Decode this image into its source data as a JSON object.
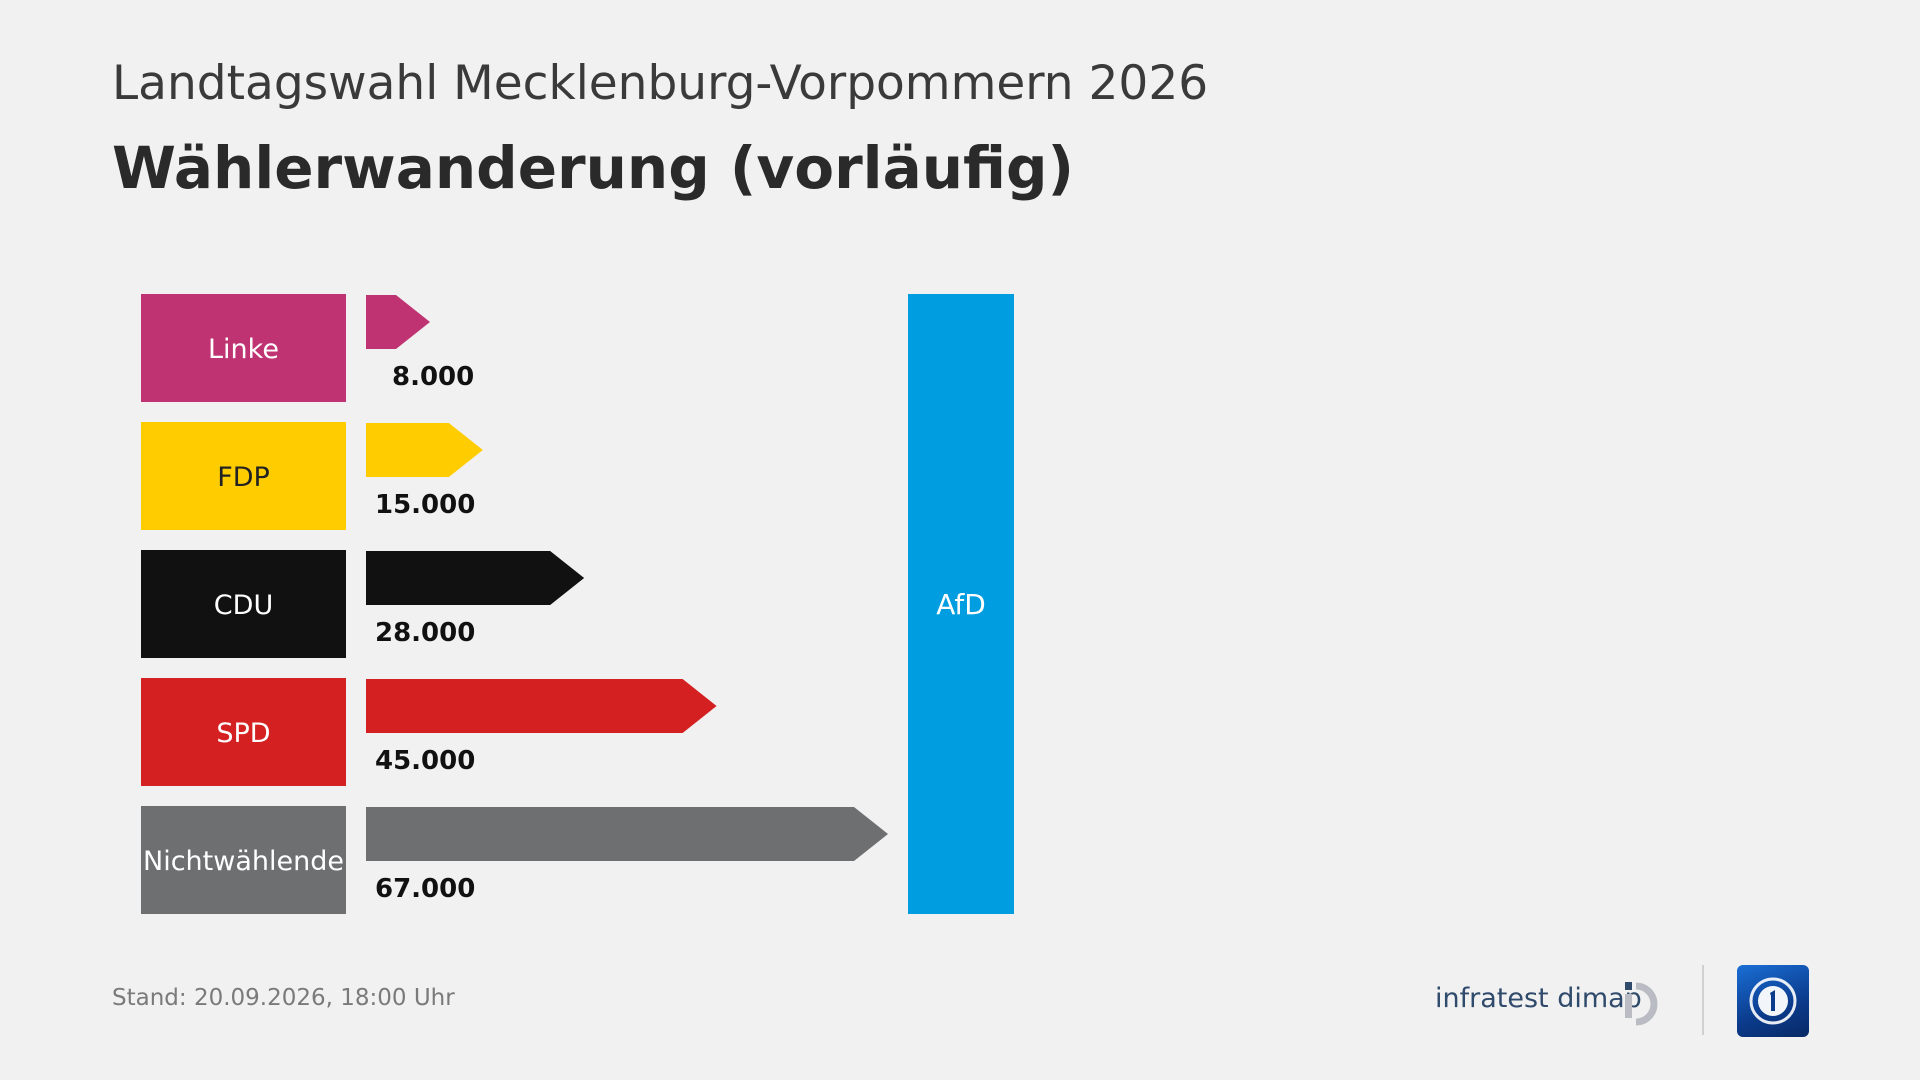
{
  "header": {
    "supertitle": "Landtagswahl Mecklenburg-Vorpommern 2026",
    "title": "Wählerwanderung (vorläufig)"
  },
  "footer": {
    "stand": "Stand:  20.09.2026, 18:00 Uhr",
    "brand": "infratest dimap"
  },
  "colors": {
    "background": "#f1f1f1",
    "linke": "#bf3373",
    "fdp": "#ffcc00",
    "cdu": "#111111",
    "spd": "#d42020",
    "nichtwaehlende": "#6e6f71",
    "afd": "#009ee0"
  },
  "icons": {
    "brand_mark": "infratest-dimap-logo-icon",
    "channel_logo": "tagesschau-logo-icon"
  },
  "chart_data": {
    "type": "bar",
    "orientation": "horizontal",
    "target": "AfD",
    "target_color": "#009ee0",
    "categories": [
      "Linke",
      "FDP",
      "CDU",
      "SPD",
      "Nichtwählende"
    ],
    "values": [
      8000,
      15000,
      28000,
      45000,
      67000
    ],
    "value_labels": [
      "8.000",
      "15.000",
      "28.000",
      "45.000",
      "67.000"
    ],
    "colors": [
      "#bf3373",
      "#ffcc00",
      "#111111",
      "#d42020",
      "#6e6f71"
    ],
    "label_text_colors": [
      "#ffffff",
      "#222222",
      "#ffffff",
      "#ffffff",
      "#ffffff"
    ],
    "xlim": [
      0,
      67000
    ]
  }
}
